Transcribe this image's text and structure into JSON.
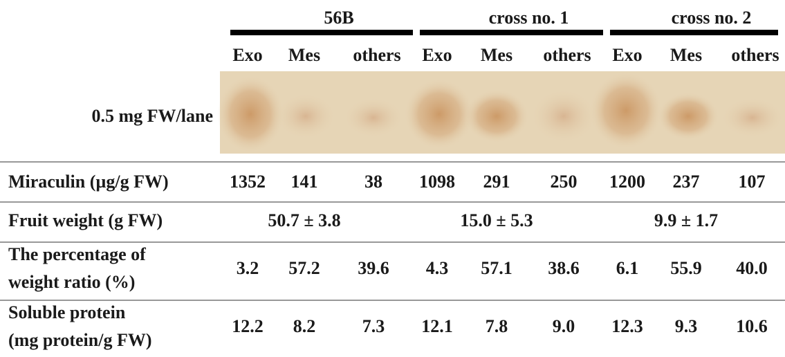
{
  "groups": [
    {
      "name": "56B",
      "lanes": [
        "Exo",
        "Mes",
        "others"
      ]
    },
    {
      "name": "cross no. 1",
      "lanes": [
        "Exo",
        "Mes",
        "others"
      ]
    },
    {
      "name": "cross no. 2",
      "lanes": [
        "Exo",
        "Mes",
        "others"
      ]
    }
  ],
  "gel_label": "0.5 mg FW/lane",
  "rows": [
    {
      "label": [
        "Miraculin (µg/g FW)"
      ],
      "values": [
        "1352",
        "141",
        "38",
        "1098",
        "291",
        "250",
        "1200",
        "237",
        "107"
      ]
    },
    {
      "label": [
        "Fruit weight (g FW)"
      ],
      "group_values": [
        "50.7 ± 3.8",
        "15.0 ± 5.3",
        "9.9 ± 1.7"
      ]
    },
    {
      "label": [
        "The percentage of",
        "weight ratio (%)"
      ],
      "values": [
        "3.2",
        "57.2",
        "39.6",
        "4.3",
        "57.1",
        "38.6",
        "6.1",
        "55.9",
        "40.0"
      ]
    },
    {
      "label": [
        "Soluble protein",
        "(mg protein/g FW)"
      ],
      "values": [
        "12.2",
        "8.2",
        "7.3",
        "12.1",
        "7.8",
        "9.0",
        "12.3",
        "9.3",
        "10.6"
      ]
    }
  ]
}
